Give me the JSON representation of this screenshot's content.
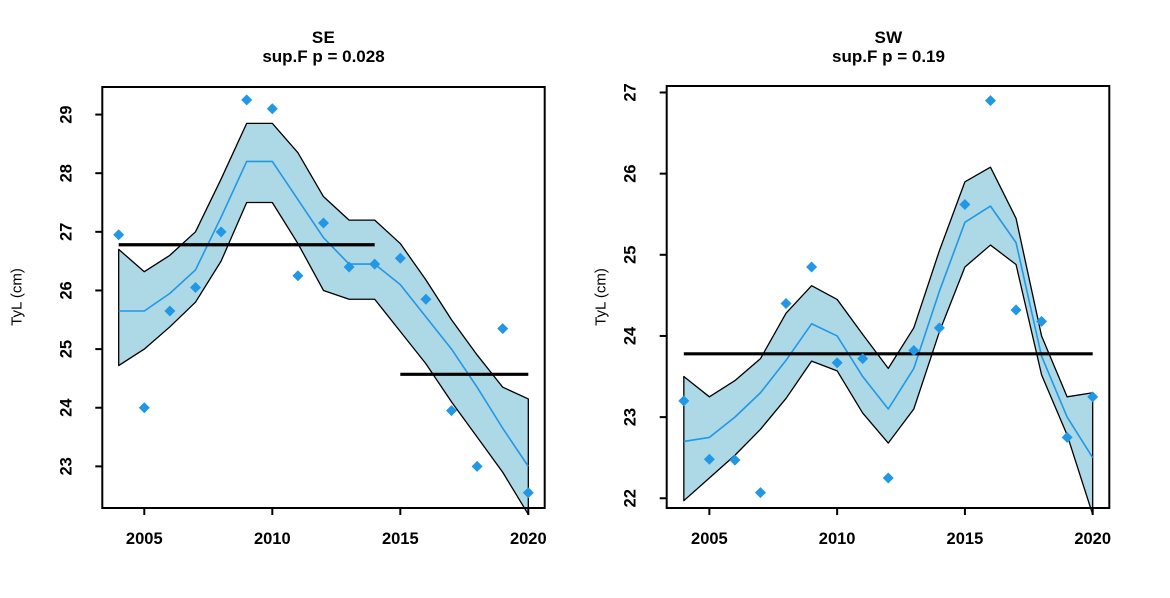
{
  "figure": {
    "background": "#FFFFFF"
  },
  "colors": {
    "point": "#2297E6",
    "fit_line": "#2297E6",
    "band_fill": "#ADD8E6",
    "band_border": "#000000",
    "mean_segment": "#000000",
    "box": "#000000",
    "text": "#000000"
  },
  "chart_data": [
    {
      "type": "scatter",
      "title": "SE",
      "subtitle": "sup.F p = 0.028",
      "xlabel": "",
      "ylabel": "TyL (cm)",
      "x": [
        2004,
        2005,
        2006,
        2007,
        2008,
        2009,
        2010,
        2011,
        2012,
        2013,
        2014,
        2015,
        2016,
        2017,
        2018,
        2019,
        2020
      ],
      "scatter": [
        26.95,
        24.0,
        25.65,
        26.05,
        27.0,
        29.25,
        29.1,
        26.25,
        27.15,
        26.4,
        26.45,
        26.55,
        25.85,
        23.95,
        23.0,
        25.35,
        22.55
      ],
      "fit": [
        25.65,
        25.65,
        25.95,
        26.35,
        27.25,
        28.2,
        28.2,
        27.55,
        26.9,
        26.45,
        26.45,
        26.1,
        25.55,
        25.0,
        24.35,
        23.65,
        23.0
      ],
      "band_upper": [
        26.7,
        26.32,
        26.6,
        27.0,
        27.9,
        28.85,
        28.85,
        28.35,
        27.6,
        27.2,
        27.2,
        26.8,
        26.18,
        25.5,
        24.9,
        24.35,
        24.15
      ],
      "band_lower": [
        24.72,
        25.0,
        25.38,
        25.8,
        26.5,
        27.5,
        27.5,
        26.8,
        26.0,
        25.85,
        25.85,
        25.3,
        24.75,
        24.1,
        23.5,
        22.9,
        22.18
      ],
      "mean_segments": [
        {
          "x_start": 2004,
          "x_end": 2014,
          "y": 26.78
        },
        {
          "x_start": 2015,
          "x_end": 2020,
          "y": 24.57
        }
      ],
      "xticks": [
        2005,
        2010,
        2015,
        2020
      ],
      "yticks": [
        23,
        24,
        25,
        26,
        27,
        28,
        29
      ],
      "xlim": [
        2003.36,
        2020.64
      ],
      "ylim": [
        22.29,
        29.47
      ],
      "grid": false,
      "legend": "none"
    },
    {
      "type": "scatter",
      "title": "SW",
      "subtitle": "sup.F p = 0.19",
      "xlabel": "",
      "ylabel": "TyL (cm)",
      "x": [
        2004,
        2005,
        2006,
        2007,
        2008,
        2009,
        2010,
        2011,
        2012,
        2013,
        2014,
        2015,
        2016,
        2017,
        2018,
        2019,
        2020
      ],
      "scatter": [
        23.2,
        22.48,
        22.47,
        22.07,
        24.4,
        24.85,
        23.67,
        23.72,
        22.25,
        23.82,
        24.1,
        25.62,
        26.9,
        24.32,
        24.18,
        22.75,
        23.25
      ],
      "fit": [
        22.7,
        22.75,
        23.0,
        23.3,
        23.7,
        24.15,
        24.0,
        23.5,
        23.1,
        23.6,
        24.55,
        25.4,
        25.6,
        25.15,
        23.75,
        23.0,
        22.5
      ],
      "band_upper": [
        23.5,
        23.25,
        23.45,
        23.72,
        24.28,
        24.62,
        24.45,
        24.02,
        23.6,
        24.1,
        25.05,
        25.9,
        26.08,
        25.45,
        24.0,
        23.25,
        23.3
      ],
      "band_lower": [
        21.97,
        22.25,
        22.53,
        22.85,
        23.23,
        23.69,
        23.57,
        23.05,
        22.68,
        23.1,
        24.05,
        24.85,
        25.12,
        24.88,
        23.52,
        22.78,
        21.8
      ],
      "mean_segments": [
        {
          "x_start": 2004,
          "x_end": 2020,
          "y": 23.78
        }
      ],
      "xticks": [
        2005,
        2010,
        2015,
        2020
      ],
      "yticks": [
        22,
        23,
        24,
        25,
        26,
        27
      ],
      "xlim": [
        2003.33,
        2020.65
      ],
      "ylim": [
        21.88,
        27.08
      ],
      "grid": false,
      "legend": "none"
    }
  ]
}
